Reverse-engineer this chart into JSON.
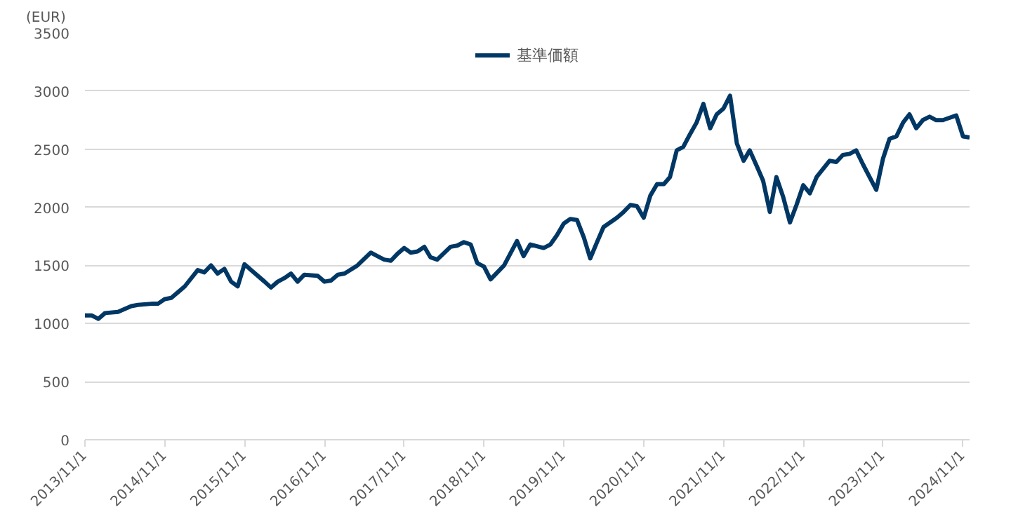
{
  "chart_data": {
    "type": "line",
    "ylabel": "(EUR)",
    "legend": "top",
    "ylim": [
      0,
      3500
    ],
    "yticks": [
      0,
      500,
      1000,
      1500,
      2000,
      2500,
      3000,
      3500
    ],
    "grid": "y",
    "xlim": [
      "2013-11-01",
      "2024-12-01"
    ],
    "xticks": [
      {
        "value": "2013-11-01",
        "label": "2013/11/1"
      },
      {
        "value": "2014-11-01",
        "label": "2014/11/1"
      },
      {
        "value": "2015-11-01",
        "label": "2015/11/1"
      },
      {
        "value": "2016-11-01",
        "label": "2016/11/1"
      },
      {
        "value": "2017-11-01",
        "label": "2017/11/1"
      },
      {
        "value": "2018-11-01",
        "label": "2018/11/1"
      },
      {
        "value": "2019-11-01",
        "label": "2019/11/1"
      },
      {
        "value": "2020-11-01",
        "label": "2020/11/1"
      },
      {
        "value": "2021-11-01",
        "label": "2021/11/1"
      },
      {
        "value": "2022-11-01",
        "label": "2022/11/1"
      },
      {
        "value": "2023-11-01",
        "label": "2023/11/1"
      },
      {
        "value": "2024-11-01",
        "label": "2024/11/1"
      }
    ],
    "marker": "none",
    "line_style": "solid",
    "series": [
      {
        "name": "基準価額",
        "color": "#003764",
        "x": [
          "2013-11",
          "2013-12",
          "2014-01",
          "2014-02",
          "2014-04",
          "2014-06",
          "2014-07",
          "2014-09",
          "2014-10",
          "2014-11",
          "2014-12",
          "2015-02",
          "2015-04",
          "2015-05",
          "2015-06",
          "2015-07",
          "2015-08",
          "2015-09",
          "2015-10",
          "2015-11",
          "2015-12",
          "2016-02",
          "2016-03",
          "2016-04",
          "2016-05",
          "2016-06",
          "2016-07",
          "2016-08",
          "2016-10",
          "2016-11",
          "2016-12",
          "2017-01",
          "2017-02",
          "2017-04",
          "2017-06",
          "2017-07",
          "2017-08",
          "2017-09",
          "2017-10",
          "2017-11",
          "2017-12",
          "2018-01",
          "2018-02",
          "2018-03",
          "2018-04",
          "2018-06",
          "2018-07",
          "2018-08",
          "2018-09",
          "2018-10",
          "2018-11",
          "2018-12",
          "2019-02",
          "2019-03",
          "2019-04",
          "2019-05",
          "2019-06",
          "2019-08",
          "2019-09",
          "2019-10",
          "2019-11",
          "2019-12",
          "2020-01",
          "2020-02",
          "2020-03",
          "2020-04",
          "2020-05",
          "2020-07",
          "2020-08",
          "2020-09",
          "2020-10",
          "2020-11",
          "2020-12",
          "2021-01",
          "2021-02",
          "2021-03",
          "2021-04",
          "2021-05",
          "2021-06",
          "2021-07",
          "2021-08",
          "2021-09",
          "2021-10",
          "2021-11",
          "2021-12",
          "2022-01",
          "2022-02",
          "2022-03",
          "2022-04",
          "2022-05",
          "2022-06",
          "2022-07",
          "2022-08",
          "2022-09",
          "2022-10",
          "2022-11",
          "2022-12",
          "2023-01",
          "2023-03",
          "2023-04",
          "2023-05",
          "2023-06",
          "2023-07",
          "2023-08",
          "2023-10",
          "2023-11",
          "2023-12",
          "2024-01",
          "2024-02",
          "2024-03",
          "2024-04",
          "2024-05",
          "2024-06",
          "2024-07",
          "2024-08",
          "2024-10",
          "2024-11",
          "2024-12"
        ],
        "values": [
          1070,
          1070,
          1040,
          1090,
          1100,
          1150,
          1160,
          1170,
          1170,
          1210,
          1220,
          1320,
          1460,
          1440,
          1500,
          1430,
          1470,
          1360,
          1320,
          1510,
          1460,
          1360,
          1310,
          1360,
          1390,
          1430,
          1360,
          1420,
          1410,
          1360,
          1370,
          1420,
          1430,
          1500,
          1610,
          1580,
          1550,
          1540,
          1600,
          1650,
          1610,
          1620,
          1660,
          1570,
          1550,
          1660,
          1670,
          1700,
          1680,
          1520,
          1490,
          1380,
          1500,
          1600,
          1710,
          1580,
          1680,
          1650,
          1680,
          1760,
          1860,
          1900,
          1890,
          1740,
          1560,
          1700,
          1830,
          1910,
          1960,
          2020,
          2010,
          1910,
          2100,
          2200,
          2200,
          2260,
          2490,
          2520,
          2630,
          2730,
          2890,
          2680,
          2800,
          2850,
          2960,
          2550,
          2400,
          2490,
          2360,
          2230,
          1960,
          2260,
          2090,
          1870,
          2020,
          2190,
          2120,
          2260,
          2400,
          2390,
          2450,
          2460,
          2490,
          2370,
          2150,
          2420,
          2590,
          2610,
          2730,
          2800,
          2680,
          2750,
          2780,
          2750,
          2750,
          2790,
          2610,
          2600
        ]
      }
    ]
  }
}
